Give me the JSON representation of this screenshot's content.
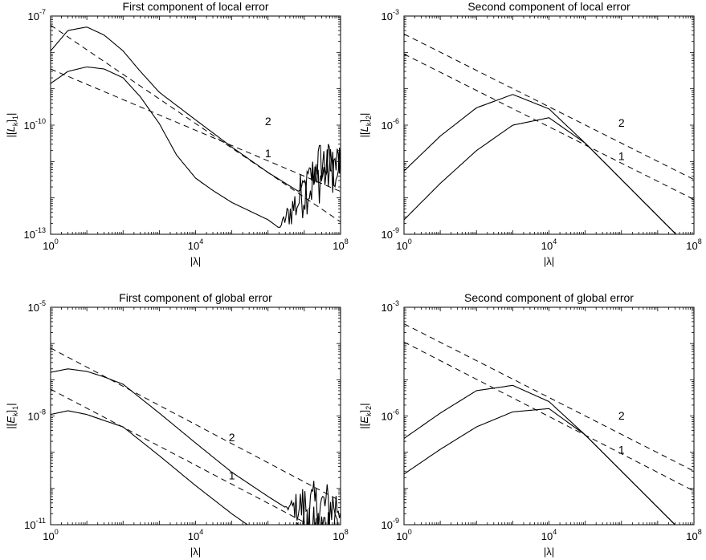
{
  "chart_data": [
    {
      "type": "line",
      "title": "First component of local error",
      "xlabel": "|λ|",
      "ylabel": {
        "pre": "|[",
        "sym": "L",
        "sub": "k",
        "post": "]",
        "comp": "1",
        "end": "|"
      },
      "x_scale": "log",
      "y_scale": "log",
      "xlim": [
        1,
        100000000
      ],
      "ylim": [
        1e-13,
        1e-07
      ],
      "x_ticks": [
        {
          "base": "10",
          "exp": "0"
        },
        {
          "base": "10",
          "exp": "4"
        },
        {
          "base": "10",
          "exp": "8"
        }
      ],
      "y_ticks": [
        {
          "base": "10",
          "exp": "-13"
        },
        {
          "base": "10",
          "exp": "-10"
        },
        {
          "base": "10",
          "exp": "-7"
        }
      ],
      "grid": false,
      "series": [
        {
          "style": "dashed",
          "x": [
            1,
            100000000
          ],
          "y": [
            5.6e-08,
            2.2e-13
          ]
        },
        {
          "style": "dashed",
          "x": [
            1,
            100000000
          ],
          "y": [
            3.5e-09,
            1.5e-12
          ]
        },
        {
          "style": "solid",
          "label": "2",
          "noise_after": 7000000,
          "x": [
            1,
            3,
            10,
            30,
            100,
            300,
            1000,
            10000,
            100000,
            1000000,
            7000000,
            30000000,
            100000000
          ],
          "y": [
            1.1e-08,
            4e-08,
            5e-08,
            3e-08,
            1.1e-08,
            3e-09,
            8e-10,
            1.4e-10,
            2.5e-11,
            5e-12,
            1.5e-12,
            1e-11,
            5e-12
          ]
        },
        {
          "style": "solid",
          "label": "1",
          "noise_after": 2000000,
          "x": [
            1,
            3,
            10,
            30,
            100,
            300,
            1000,
            3000,
            10000,
            30000,
            100000,
            1000000,
            2000000,
            10000000,
            100000000
          ],
          "y": [
            1.4e-09,
            3e-09,
            4e-09,
            3.5e-09,
            2e-09,
            6e-10,
            1.1e-10,
            1.5e-11,
            3.5e-12,
            1.6e-12,
            7.5e-13,
            2.5e-13,
            1.5e-13,
            1.5e-12,
            1e-11
          ]
        }
      ],
      "labels": [
        {
          "text": "2",
          "x": 1000000,
          "y": 1e-10
        },
        {
          "text": "1",
          "x": 1000000,
          "y": 1.3e-11
        }
      ]
    },
    {
      "type": "line",
      "title": "Second component of local error",
      "xlabel": "|λ|",
      "ylabel": {
        "pre": "|[",
        "sym": "L",
        "sub": "k",
        "post": "]",
        "comp": "2",
        "end": "|"
      },
      "x_scale": "log",
      "y_scale": "log",
      "xlim": [
        1,
        100000000
      ],
      "ylim": [
        1e-09,
        0.001
      ],
      "x_ticks": [
        {
          "base": "10",
          "exp": "0"
        },
        {
          "base": "10",
          "exp": "4"
        },
        {
          "base": "10",
          "exp": "8"
        }
      ],
      "y_ticks": [
        {
          "base": "10",
          "exp": "-9"
        },
        {
          "base": "10",
          "exp": "-6"
        },
        {
          "base": "10",
          "exp": "-3"
        }
      ],
      "grid": false,
      "series": [
        {
          "style": "dashed",
          "x": [
            1,
            100000000
          ],
          "y": [
            0.00032,
            3.2e-08
          ]
        },
        {
          "style": "dashed",
          "x": [
            1,
            100000000
          ],
          "y": [
            9e-05,
            9e-09
          ]
        },
        {
          "style": "solid",
          "label": "2",
          "x": [
            1,
            10,
            100,
            1000,
            10000,
            100000,
            1000000,
            10000000,
            100000000
          ],
          "y": [
            5.5e-08,
            5e-07,
            3e-06,
            7e-06,
            2.8e-06,
            3.2e-07,
            3.2e-08,
            3.2e-09,
            3.2e-10
          ]
        },
        {
          "style": "solid",
          "label": "1",
          "x": [
            1,
            10,
            100,
            1000,
            10000,
            100000,
            1000000,
            10000000,
            100000000
          ],
          "y": [
            2.5e-09,
            2.5e-08,
            2e-07,
            1e-06,
            1.6e-06,
            3.2e-07,
            3.2e-08,
            3.2e-09,
            3.2e-10
          ]
        }
      ],
      "labels": [
        {
          "text": "2",
          "x": 1000000,
          "y": 9e-07
        },
        {
          "text": "1",
          "x": 1000000,
          "y": 1.1e-07
        }
      ]
    },
    {
      "type": "line",
      "title": "First component of global error",
      "xlabel": "|λ|",
      "ylabel": {
        "pre": "|[",
        "sym": "E",
        "sub": "k",
        "post": "]",
        "comp": "1",
        "end": "|"
      },
      "x_scale": "log",
      "y_scale": "log",
      "xlim": [
        1,
        100000000
      ],
      "ylim": [
        1e-11,
        1e-05
      ],
      "x_ticks": [
        {
          "base": "10",
          "exp": "0"
        },
        {
          "base": "10",
          "exp": "4"
        },
        {
          "base": "10",
          "exp": "8"
        }
      ],
      "y_ticks": [
        {
          "base": "10",
          "exp": "-11"
        },
        {
          "base": "10",
          "exp": "-8"
        },
        {
          "base": "10",
          "exp": "-5"
        }
      ],
      "grid": false,
      "series": [
        {
          "style": "dashed",
          "x": [
            1,
            100000000
          ],
          "y": [
            7.5e-07,
            4.5e-11
          ]
        },
        {
          "style": "dashed",
          "x": [
            1,
            100000000
          ],
          "y": [
            5.5e-08,
            3.5e-12
          ]
        },
        {
          "style": "solid",
          "label": "2",
          "noise_after": 3000000,
          "x": [
            1,
            3,
            10,
            30,
            100,
            1000,
            10000,
            100000,
            1000000,
            3000000,
            100000000
          ],
          "y": [
            1.6e-07,
            2e-07,
            1.7e-07,
            1.2e-07,
            7.5e-08,
            1.2e-08,
            1.8e-09,
            2.8e-10,
            6e-11,
            3e-11,
            3.5e-11
          ]
        },
        {
          "style": "solid",
          "label": "1",
          "noise_after": 1500000,
          "x": [
            1,
            3,
            10,
            30,
            100,
            1000,
            10000,
            100000,
            1000000,
            1500000,
            100000000
          ],
          "y": [
            1.1e-08,
            1.4e-08,
            1.1e-08,
            7.5e-09,
            5e-09,
            8e-10,
            1.2e-10,
            2e-11,
            4e-12,
            3e-12,
            1.2e-11
          ]
        }
      ],
      "labels": [
        {
          "text": "2",
          "x": 100000,
          "y": 2e-09
        },
        {
          "text": "1",
          "x": 100000,
          "y": 1.8e-10
        }
      ]
    },
    {
      "type": "line",
      "title": "Second component of global error",
      "xlabel": "|λ|",
      "ylabel": {
        "pre": "|[",
        "sym": "E",
        "sub": "k",
        "post": "]",
        "comp": "2",
        "end": "|"
      },
      "x_scale": "log",
      "y_scale": "log",
      "xlim": [
        1,
        100000000
      ],
      "ylim": [
        1e-09,
        0.001
      ],
      "x_ticks": [
        {
          "base": "10",
          "exp": "0"
        },
        {
          "base": "10",
          "exp": "4"
        },
        {
          "base": "10",
          "exp": "8"
        }
      ],
      "y_ticks": [
        {
          "base": "10",
          "exp": "-9"
        },
        {
          "base": "10",
          "exp": "-6"
        },
        {
          "base": "10",
          "exp": "-3"
        }
      ],
      "grid": false,
      "series": [
        {
          "style": "dashed",
          "x": [
            1,
            100000000
          ],
          "y": [
            0.00035,
            3e-08
          ]
        },
        {
          "style": "dashed",
          "x": [
            1,
            100000000
          ],
          "y": [
            0.00011,
            8.5e-09
          ]
        },
        {
          "style": "solid",
          "label": "2",
          "x": [
            1,
            10,
            100,
            1000,
            10000,
            100000,
            1000000,
            10000000,
            100000000
          ],
          "y": [
            2.4e-07,
            1.2e-06,
            5e-06,
            7e-06,
            2.5e-06,
            3e-07,
            3e-08,
            3e-09,
            3e-10
          ]
        },
        {
          "style": "solid",
          "label": "1",
          "x": [
            1,
            10,
            100,
            1000,
            10000,
            100000,
            1000000,
            10000000,
            100000000
          ],
          "y": [
            2.5e-08,
            1.2e-07,
            5e-07,
            1.3e-06,
            1.6e-06,
            3e-07,
            3e-08,
            3e-09,
            3e-10
          ]
        }
      ],
      "labels": [
        {
          "text": "2",
          "x": 1000000,
          "y": 8e-07
        },
        {
          "text": "1",
          "x": 1000000,
          "y": 9e-08
        }
      ]
    }
  ]
}
